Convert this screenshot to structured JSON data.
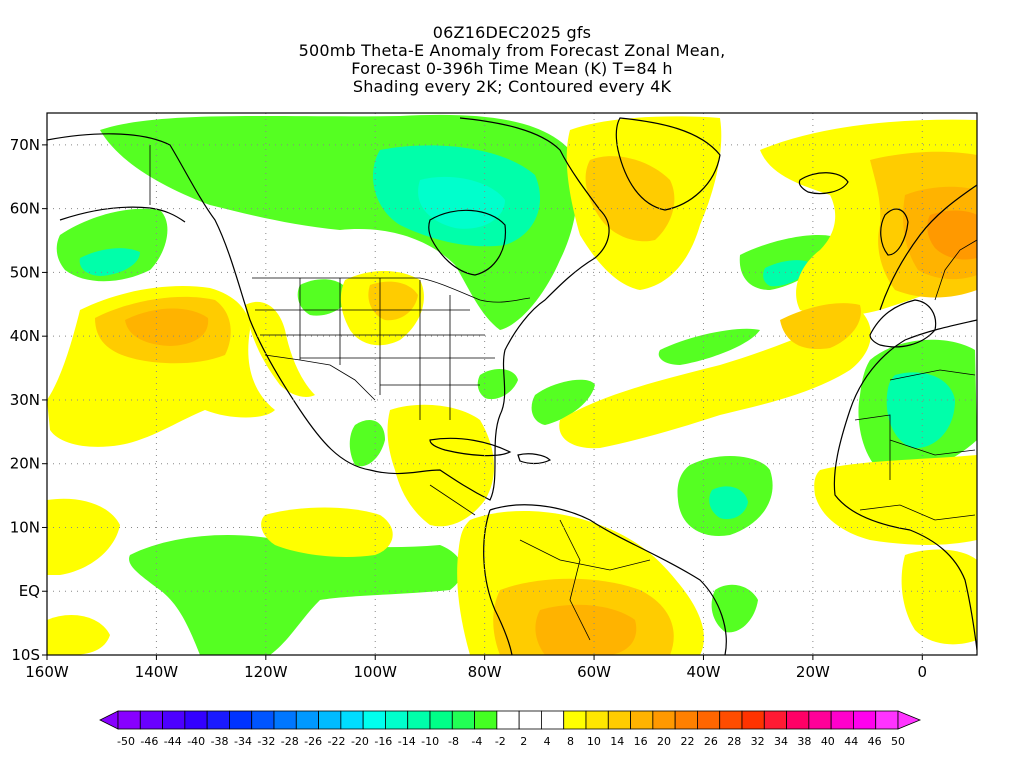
{
  "title": {
    "line1": "06Z16DEC2025 gfs",
    "line2": "500mb Theta-E Anomaly from Forecast Zonal Mean,",
    "line3": "Forecast 0-396h Time Mean (K) T=84 h",
    "line4": "Shading every 2K; Contoured every 4K"
  },
  "map": {
    "lon_labels": [
      "160W",
      "140W",
      "120W",
      "100W",
      "80W",
      "60W",
      "40W",
      "20W",
      "0"
    ],
    "lat_labels": [
      "70N",
      "60N",
      "50N",
      "40N",
      "30N",
      "20N",
      "10N",
      "EQ",
      "10S"
    ],
    "lon_range": [
      -160,
      10
    ],
    "lat_range": [
      -10,
      75
    ]
  },
  "colorbar": {
    "labels": [
      "-50",
      "-46",
      "-44",
      "-40",
      "-38",
      "-34",
      "-32",
      "-28",
      "-26",
      "-22",
      "-20",
      "-16",
      "-14",
      "-10",
      "-8",
      "-4",
      "-2",
      "2",
      "4",
      "8",
      "10",
      "14",
      "16",
      "20",
      "22",
      "26",
      "28",
      "32",
      "34",
      "38",
      "40",
      "44",
      "46",
      "50"
    ],
    "colors": [
      "#8800ff",
      "#6a00ff",
      "#4d00ff",
      "#3300ff",
      "#1a1aff",
      "#0033ff",
      "#0055ff",
      "#0077ff",
      "#0099ff",
      "#00bbff",
      "#00ddff",
      "#00ffee",
      "#00ffcc",
      "#00ffaa",
      "#00ff88",
      "#22ff55",
      "#44ff22",
      "#ffffff",
      "#ffffff",
      "#ffffff",
      "#ffff00",
      "#ffe600",
      "#ffcc00",
      "#ffb300",
      "#ff9900",
      "#ff8000",
      "#ff6600",
      "#ff4d00",
      "#ff3300",
      "#ff1a33",
      "#ff0066",
      "#ff0099",
      "#ff00cc",
      "#ff00ee",
      "#ff33ff"
    ]
  }
}
